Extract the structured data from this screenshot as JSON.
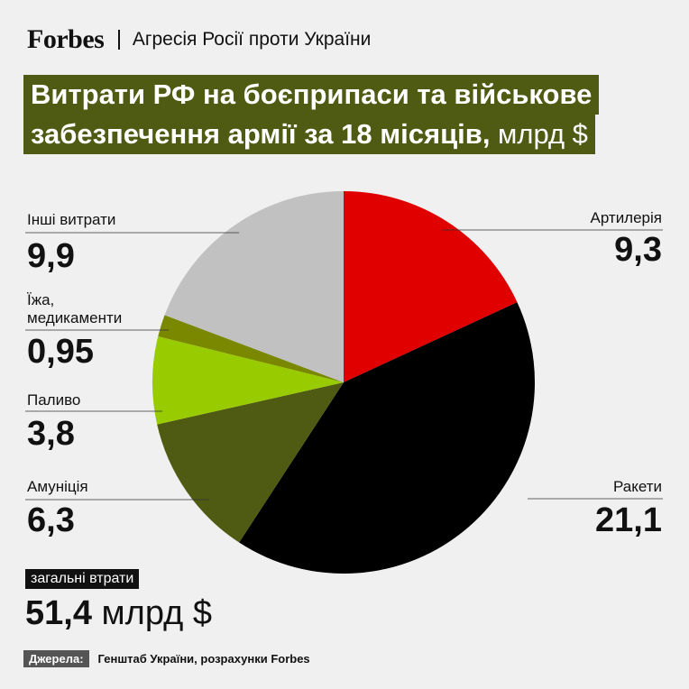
{
  "header": {
    "logo": "Forbes",
    "section": "Агресія Росії проти України"
  },
  "title": {
    "line1": "Витрати РФ на боєприпаси та військове",
    "line2": "забезпечення армії за 18 місяців,",
    "unit": " млрд $"
  },
  "chart_data": {
    "type": "pie",
    "title": "Витрати РФ на боєприпаси та військове забезпечення армії за 18 місяців, млрд $",
    "unit": "млрд $",
    "slices": [
      {
        "label": "Артилерія",
        "value": 9.3,
        "display": "9,3",
        "color": "#e00000"
      },
      {
        "label": "Ракети",
        "value": 21.1,
        "display": "21,1",
        "color": "#000000"
      },
      {
        "label": "Амуніція",
        "value": 6.3,
        "display": "6,3",
        "color": "#4f5a12"
      },
      {
        "label": "Паливо",
        "value": 3.8,
        "display": "3,8",
        "color": "#99cc00"
      },
      {
        "label": "Їжа, медикаменти",
        "value": 0.95,
        "display": "0,95",
        "color": "#7a8800"
      },
      {
        "label": "Інші витрати",
        "value": 9.9,
        "display": "9,9",
        "color": "#c1c1c1"
      }
    ]
  },
  "labels": {
    "artillery": {
      "name": "Артилерія",
      "value": "9,3"
    },
    "rockets": {
      "name": "Ракети",
      "value": "21,1"
    },
    "ammo": {
      "name": "Амуніція",
      "value": "6,3"
    },
    "fuel": {
      "name": "Паливо",
      "value": "3,8"
    },
    "food_line1": "Їжа,",
    "food_line2": "медикаменти",
    "food_value": "0,95",
    "other": {
      "name": "Інші витрати",
      "value": "9,9"
    }
  },
  "total": {
    "label": "загальні втрати",
    "value": "51,4",
    "unit": " млрд $"
  },
  "source": {
    "label": "Джерела:",
    "text": "Генштаб України, розрахунки Forbes"
  }
}
